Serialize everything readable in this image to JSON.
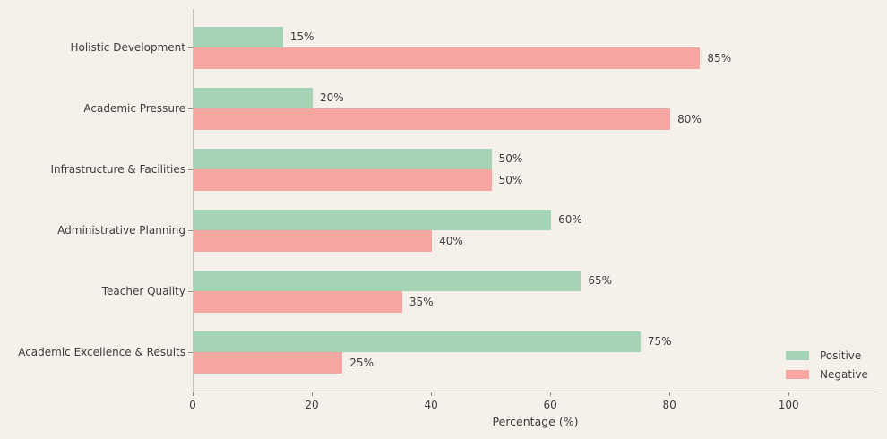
{
  "chart_data": {
    "type": "bar",
    "orientation": "horizontal",
    "title": "",
    "xlabel": "Percentage (%)",
    "ylabel": "",
    "categories": [
      "Holistic Development",
      "Academic Pressure",
      "Infrastructure & Facilities",
      "Administrative Planning",
      "Teacher Quality",
      "Academic Excellence & Results"
    ],
    "series": [
      {
        "name": "Positive",
        "color": "#a5d3b5",
        "values": [
          15,
          20,
          50,
          60,
          65,
          75
        ]
      },
      {
        "name": "Negative",
        "color": "#f6a7a1",
        "values": [
          85,
          80,
          50,
          40,
          35,
          25
        ]
      }
    ],
    "value_label_suffix": "%",
    "xlim": [
      0,
      115
    ],
    "xticks": [
      0,
      20,
      40,
      60,
      80,
      100
    ],
    "grid": false,
    "legend": {
      "position": "lower-right",
      "items": [
        "Positive",
        "Negative"
      ]
    },
    "colors": {
      "background": "#f5f0ea",
      "text": "#3d3d3d",
      "spine": "#c6c2bd",
      "tick": "#8a8884"
    }
  }
}
